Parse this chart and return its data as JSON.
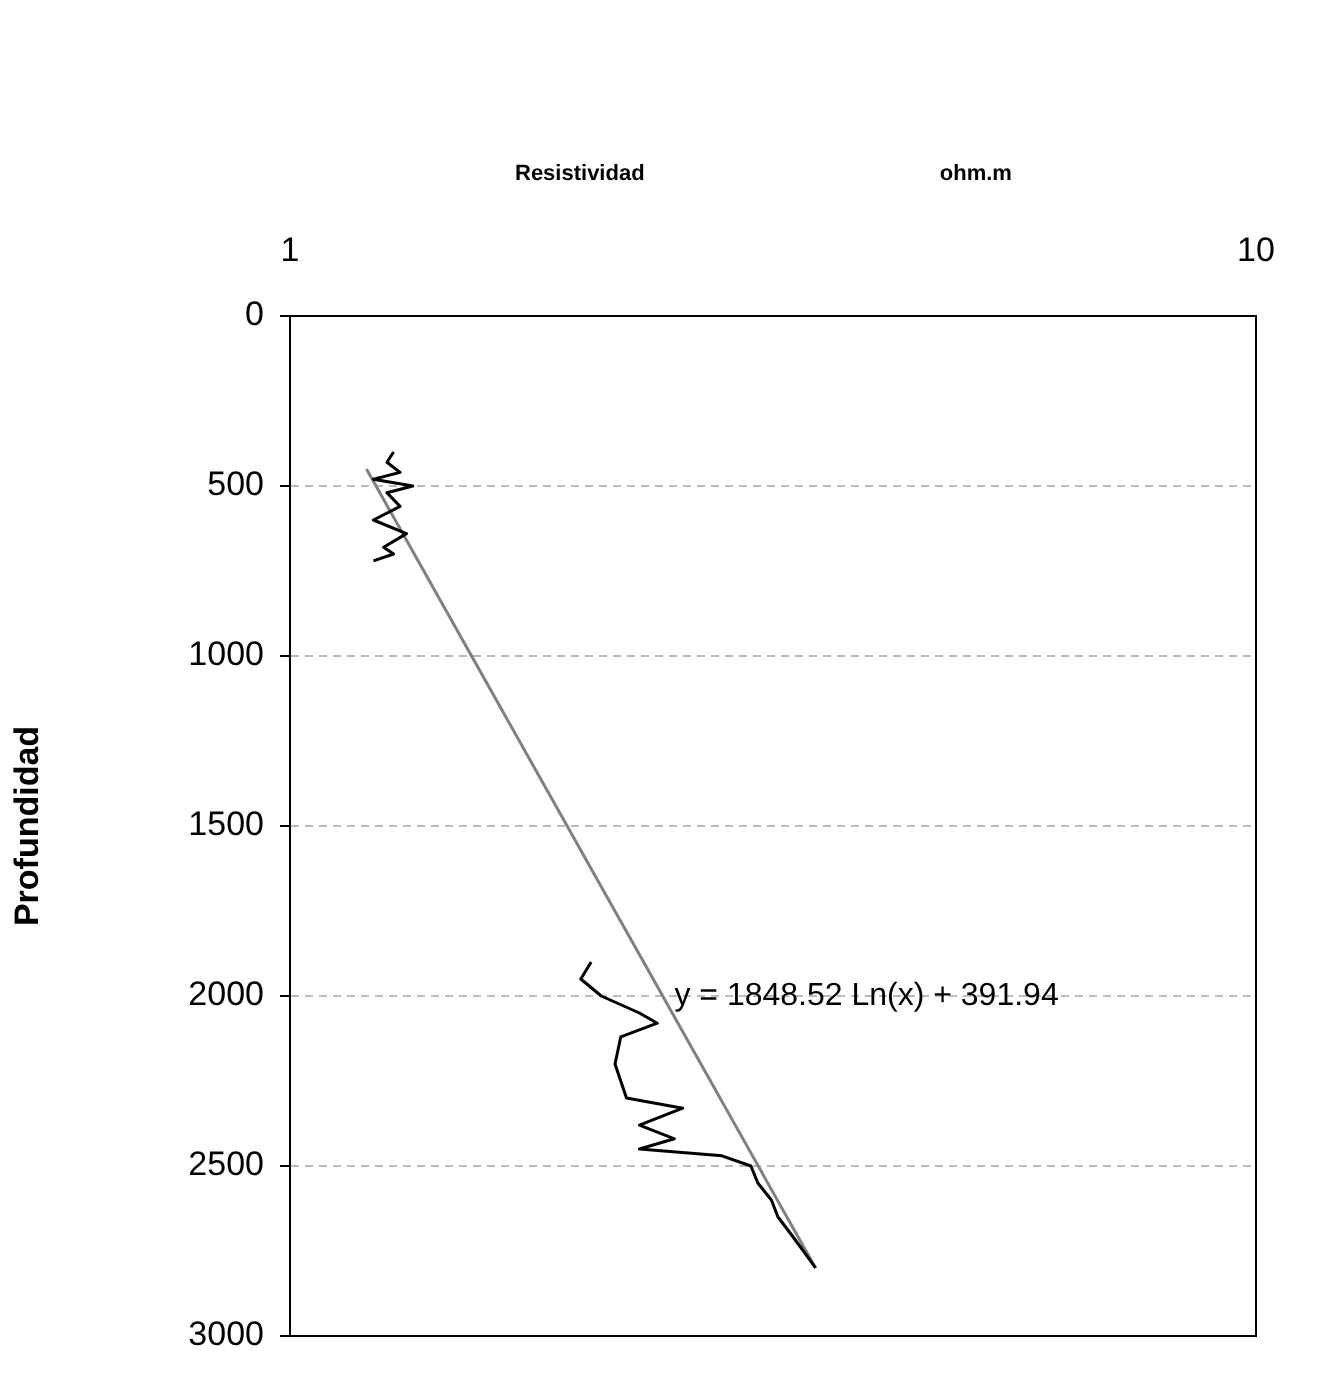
{
  "chart_data": {
    "type": "line",
    "xlabel": "Resistividad",
    "ylabel": "Profundidad",
    "annotations": [
      "ohm.m",
      {
        "text": "y = 1848.52 Ln(x) + 391.94",
        "x": 2.5,
        "y": 2000
      }
    ],
    "log": "x",
    "xlim": [
      1,
      10
    ],
    "xticks": [
      1,
      10
    ],
    "ylim": [
      3000,
      0
    ],
    "yticks": [
      0,
      500,
      1000,
      1500,
      2000,
      2500,
      3000
    ],
    "grid": "y",
    "legend": false,
    "marker": "none",
    "series": [
      {
        "color": "#000000",
        "x": [
          1.28,
          1.26,
          1.3,
          1.22,
          1.34,
          1.26,
          1.3,
          1.22,
          1.32,
          1.25,
          1.28,
          1.22
        ],
        "values": [
          400,
          430,
          460,
          480,
          500,
          520,
          560,
          600,
          640,
          680,
          700,
          720
        ]
      },
      {
        "color": "#000000",
        "x": [
          2.05,
          2.0,
          2.1,
          2.3,
          2.4,
          2.2,
          2.17,
          2.23,
          2.55,
          2.3,
          2.5,
          2.3,
          2.8,
          3.0,
          3.05,
          3.15,
          3.2,
          3.3,
          3.4,
          3.5
        ],
        "values": [
          1900,
          1950,
          2000,
          2050,
          2080,
          2120,
          2200,
          2300,
          2330,
          2380,
          2420,
          2450,
          2470,
          2500,
          2550,
          2600,
          2650,
          2700,
          2750,
          2800
        ]
      },
      {
        "color": "#808080",
        "x": [
          1.2,
          3.5
        ],
        "values": [
          450,
          2800
        ]
      }
    ]
  }
}
